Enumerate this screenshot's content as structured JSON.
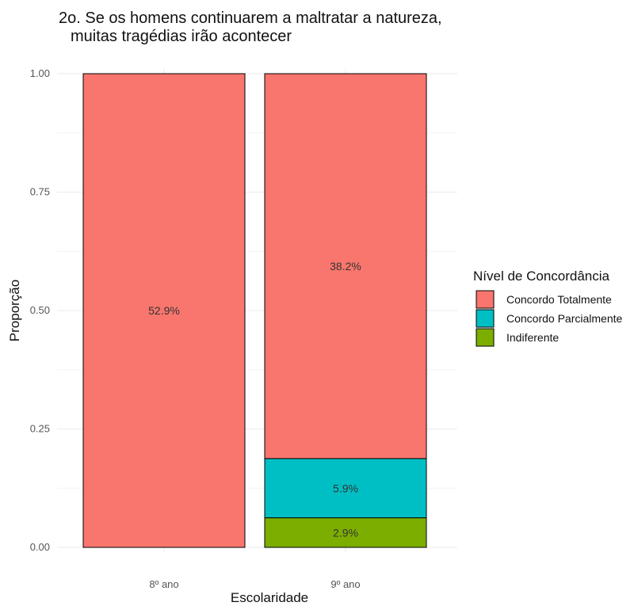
{
  "chart_data": {
    "type": "bar",
    "stacked": true,
    "title_lines": [
      "2o. Se os homens continuarem a maltratar a natureza,",
      "muitas tragédias irão acontecer"
    ],
    "xlabel": "Escolaridade",
    "ylabel": "Proporção",
    "categories": [
      "8º ano",
      "9º ano"
    ],
    "ylim": [
      0,
      1
    ],
    "y_ticks": [
      "0.00",
      "0.25",
      "0.50",
      "0.75",
      "1.00"
    ],
    "y_tick_values": [
      0,
      0.25,
      0.5,
      0.75,
      1.0
    ],
    "grid": true,
    "legend": {
      "title": "Nível de Concordância",
      "position": "right"
    },
    "series": [
      {
        "name": "Indiferente",
        "color": "#7CAE00",
        "values": [
          0,
          0.0625
        ],
        "labels": [
          "",
          "2.9%"
        ]
      },
      {
        "name": "Concordo Parcialmente",
        "color": "#00BFC4",
        "values": [
          0,
          0.125
        ],
        "labels": [
          "",
          "5.9%"
        ]
      },
      {
        "name": "Concordo Totalmente",
        "color": "#F8766D",
        "values": [
          1.0,
          0.8125
        ],
        "labels": [
          "52.9%",
          "38.2%"
        ]
      }
    ],
    "legend_order": [
      "Concordo Totalmente",
      "Concordo Parcialmente",
      "Indiferente"
    ]
  }
}
